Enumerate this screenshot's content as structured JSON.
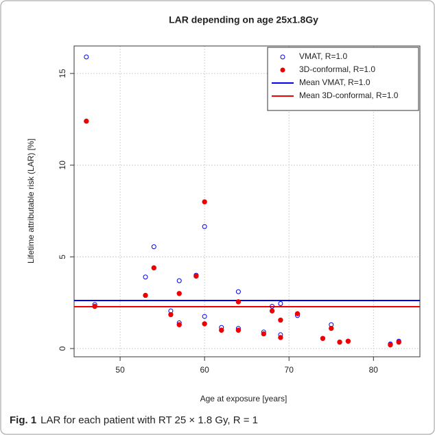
{
  "chart_data": {
    "type": "scatter",
    "title": "LAR depending on age 25x1.8Gy",
    "x_label": "Age at exposure [years]",
    "y_label": "Lifetime attributable risk (LAR) [%]",
    "xlim": [
      44.55,
      85.5
    ],
    "ylim": [
      -0.45,
      16.5
    ],
    "xticks": [
      50,
      60,
      70,
      80
    ],
    "yticks": [
      0,
      5,
      10,
      15
    ],
    "grid": true,
    "legend": "top-right",
    "series": [
      {
        "name": "VMAT, R=1.0",
        "color": "#0000ee",
        "marker": "open",
        "x": [
          46,
          47,
          53,
          54,
          56,
          57,
          57,
          59,
          60,
          60,
          62,
          64,
          64,
          67,
          68,
          69,
          69,
          71,
          74,
          75,
          76,
          77,
          82,
          83
        ],
        "y": [
          15.9,
          2.4,
          3.9,
          5.55,
          2.05,
          3.7,
          1.4,
          4.0,
          6.65,
          1.75,
          1.15,
          3.1,
          1.1,
          0.9,
          2.3,
          2.45,
          0.75,
          1.8,
          0.55,
          1.3,
          0.35,
          0.4,
          0.25,
          0.4
        ]
      },
      {
        "name": "3D-conformal, R=1.0",
        "color": "#ee0000",
        "marker": "filled",
        "x": [
          46,
          47,
          53,
          54,
          56,
          57,
          57,
          59,
          60,
          60,
          62,
          64,
          64,
          67,
          68,
          69,
          69,
          71,
          74,
          75,
          76,
          77,
          82,
          83
        ],
        "y": [
          12.4,
          2.3,
          2.9,
          4.4,
          1.85,
          3.0,
          1.3,
          3.95,
          8.0,
          1.35,
          1.0,
          2.55,
          1.0,
          0.8,
          2.05,
          1.55,
          0.6,
          1.9,
          0.55,
          1.1,
          0.35,
          0.4,
          0.2,
          0.35
        ]
      }
    ],
    "mean_lines": [
      {
        "name": "Mean VMAT, R=1.0",
        "color": "#0000ee",
        "value": 2.62
      },
      {
        "name": "Mean 3D-conformal, R=1.0",
        "color": "#ee0000",
        "value": 2.28
      }
    ]
  },
  "caption": {
    "label": "Fig. 1",
    "text": "LAR for each patient with RT 25 × 1.8 Gy, R = 1"
  }
}
